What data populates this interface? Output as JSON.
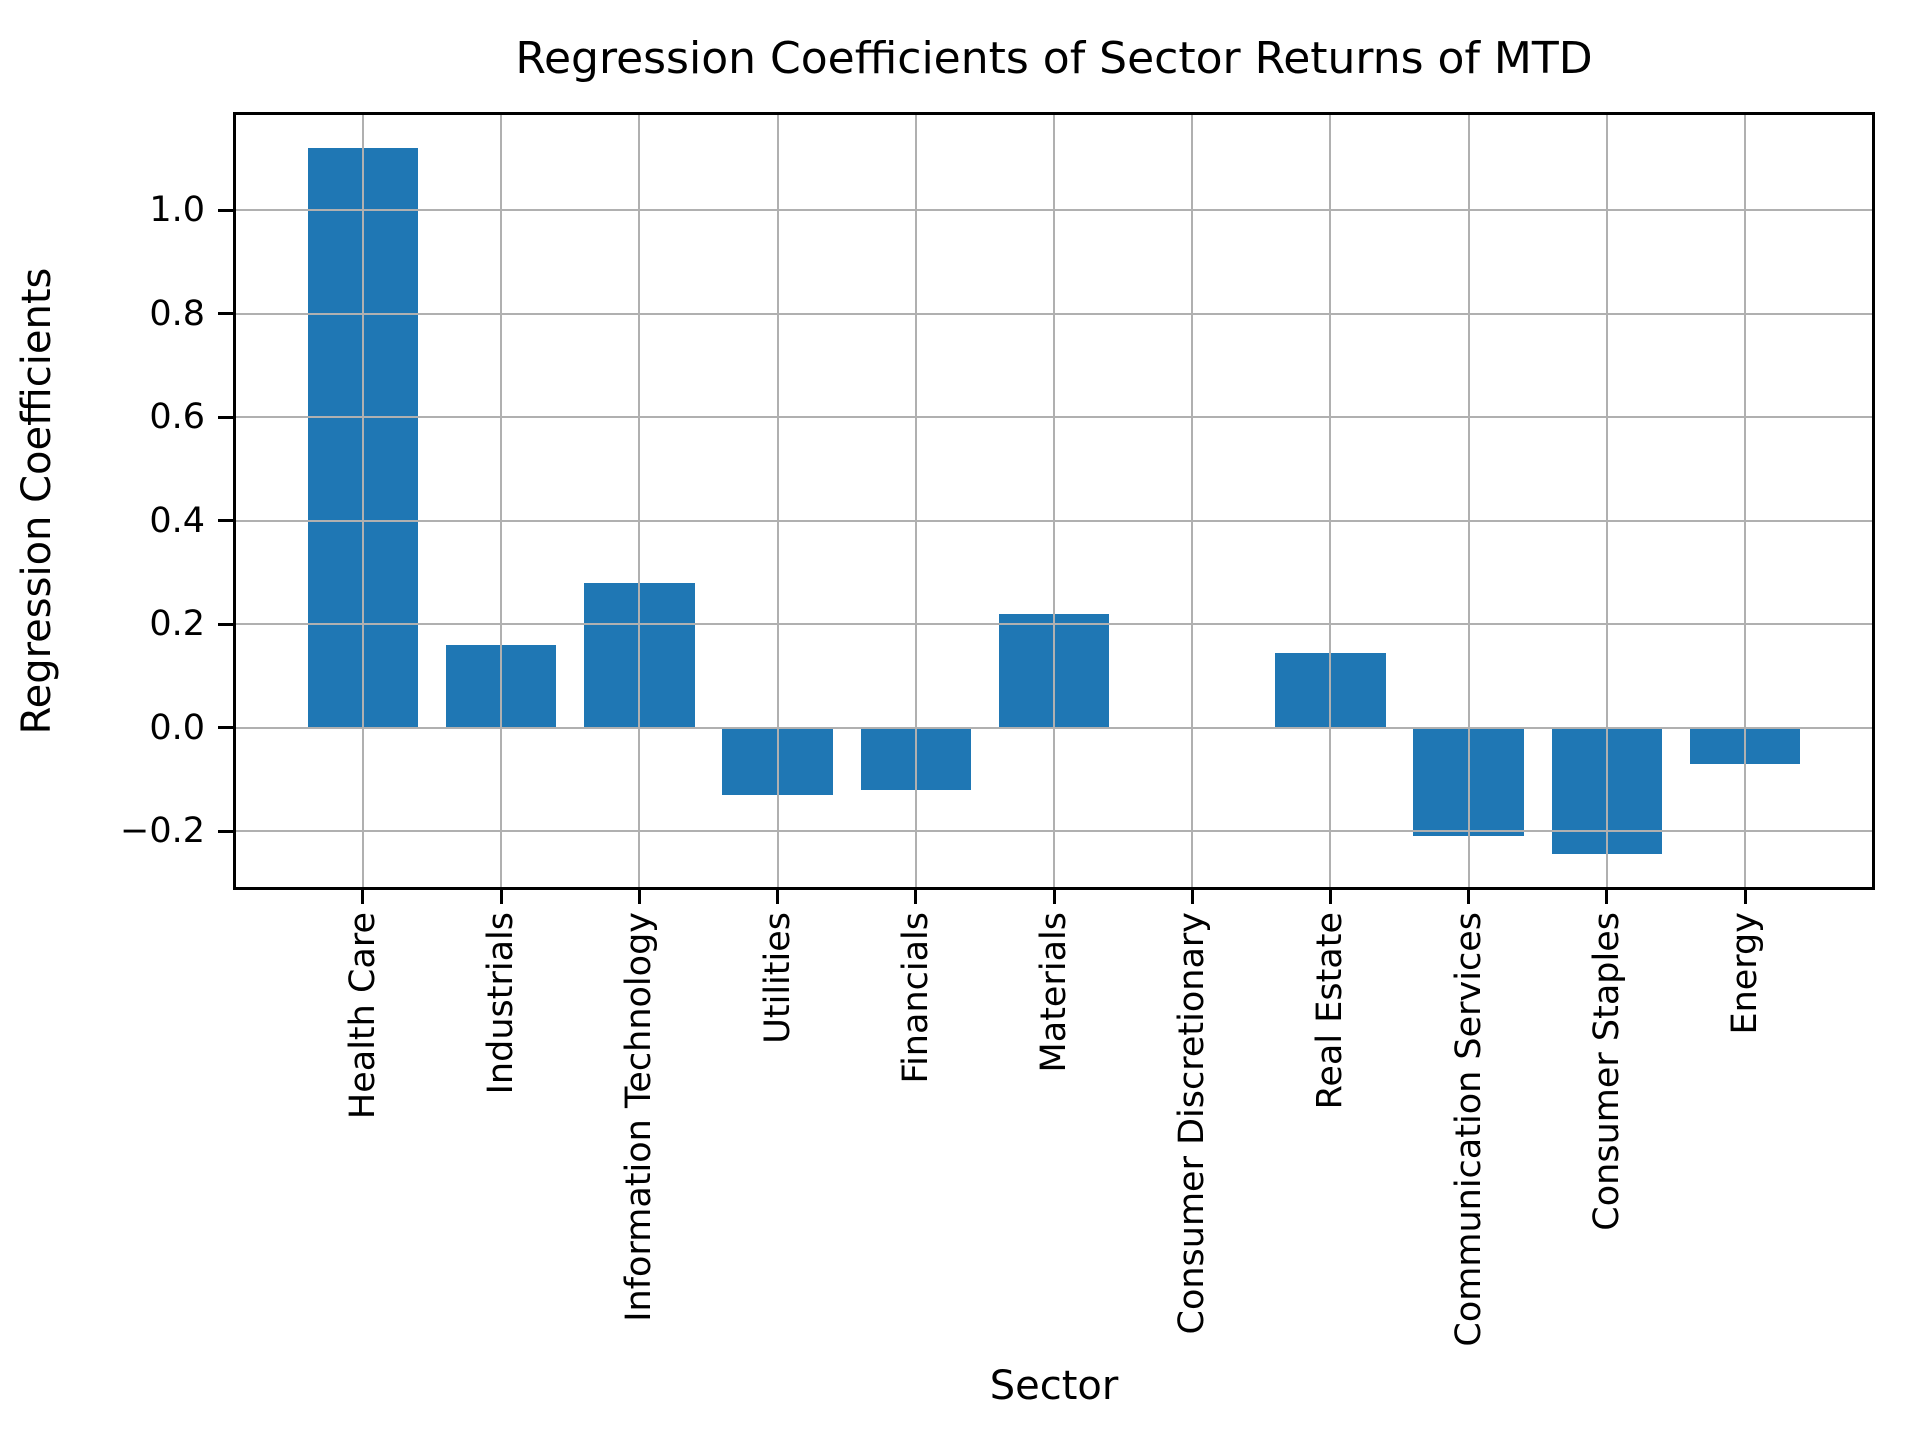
{
  "figure": {
    "background_color": "#ffffff"
  },
  "chart_data": {
    "type": "bar",
    "title": "Regression Coefficients of Sector Returns of MTD",
    "xlabel": "Sector",
    "ylabel": "Regression Coefficients",
    "categories": [
      "Health Care",
      "Industrials",
      "Information Technology",
      "Utilities",
      "Financials",
      "Materials",
      "Consumer Discretionary",
      "Real Estate",
      "Communication Services",
      "Consumer Staples",
      "Energy"
    ],
    "values": [
      1.12,
      0.16,
      0.28,
      -0.13,
      -0.12,
      0.22,
      0.0,
      0.145,
      -0.21,
      -0.245,
      -0.07
    ],
    "yticks": {
      "values": [
        1.0,
        0.8,
        0.6,
        0.4,
        0.2,
        0.0,
        -0.2
      ],
      "labels": [
        "1.0",
        "0.8",
        "0.6",
        "0.4",
        "0.2",
        "0.0",
        "−0.2"
      ]
    },
    "ylim": [
      -0.314,
      1.19
    ],
    "xlim": [
      -0.94,
      10.94
    ],
    "bar_width_units": 0.8,
    "x_tick_rotation_deg": 90,
    "grid": true,
    "grid_over_bars": true,
    "legend": null,
    "colors": {
      "bar": "#1f77b4",
      "grid": "#b0b0b0",
      "spine": "#000000",
      "text": "#000000"
    }
  }
}
